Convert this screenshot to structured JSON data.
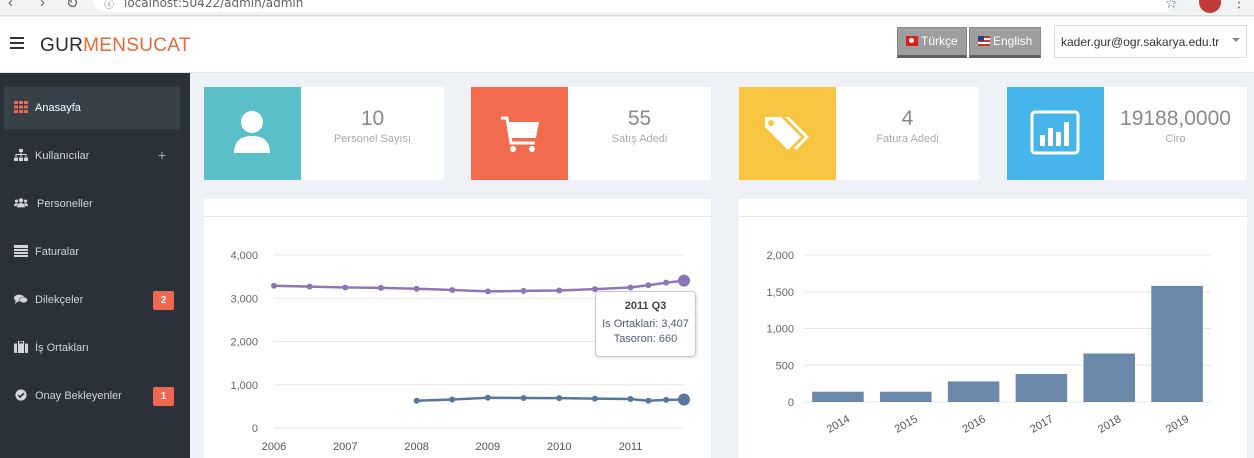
{
  "browser": {
    "url": "localhost:50422/admin/admin"
  },
  "header": {
    "brand_part1": "GUR",
    "brand_part2": "MENSUCAT",
    "lang_tr": "Türkçe",
    "lang_en": "English",
    "user_email": "kader.gur@ogr.sakarya.edu.tr"
  },
  "sidebar": {
    "items": [
      {
        "label": "Anasayfa",
        "icon": "grid-icon"
      },
      {
        "label": "Kullanıcılar",
        "icon": "sitemap-icon"
      },
      {
        "label": "Personeller",
        "icon": "users-icon"
      },
      {
        "label": "Faturalar",
        "icon": "table-icon"
      },
      {
        "label": "Dilekçeler",
        "icon": "comments-icon",
        "badge": "2"
      },
      {
        "label": "İş Ortakları",
        "icon": "briefcase-icon"
      },
      {
        "label": "Onay Bekleyenler",
        "icon": "check-circle-icon",
        "badge": "1"
      }
    ]
  },
  "cards": [
    {
      "value": "10",
      "caption": "Personel Sayısı",
      "color": "#5bbfc9",
      "icon": "user-icon"
    },
    {
      "value": "55",
      "caption": "Satış Adedi",
      "color": "#f26b4f",
      "icon": "cart-icon"
    },
    {
      "value": "4",
      "caption": "Fatura Adedi",
      "color": "#f8c540",
      "icon": "tags-icon"
    },
    {
      "value": "19188,0000",
      "caption": "Ciro",
      "color": "#45b5ea",
      "icon": "bar-chart-icon"
    }
  ],
  "tooltip": {
    "title": "2011 Q3",
    "line1": "Is Ortaklari: 3,407",
    "line2": "Tasoron: 660"
  },
  "chart_data": [
    {
      "type": "line",
      "x": [
        "2006",
        "2006.5",
        "2007",
        "2007.5",
        "2008",
        "2008.5",
        "2009",
        "2009.5",
        "2010",
        "2010.5",
        "2011",
        "2011.25",
        "2011.5",
        "2011.75"
      ],
      "xticks": [
        "2006",
        "2007",
        "2008",
        "2009",
        "2010",
        "2011"
      ],
      "yticks": [
        "0",
        "1,000",
        "2,000",
        "3,000",
        "4,000"
      ],
      "ylim": [
        0,
        4000
      ],
      "grid": true,
      "series": [
        {
          "name": "Is Ortaklari",
          "color": "#8b76b8",
          "values": [
            3290,
            3270,
            3250,
            3240,
            3220,
            3190,
            3160,
            3170,
            3180,
            3210,
            3250,
            3300,
            3360,
            3407
          ]
        },
        {
          "name": "Tasoron",
          "color": "#56789f",
          "values": [
            null,
            null,
            null,
            null,
            630,
            660,
            700,
            695,
            690,
            680,
            670,
            630,
            650,
            660
          ]
        }
      ]
    },
    {
      "type": "bar",
      "categories": [
        "2014",
        "2015",
        "2016",
        "2017",
        "2018",
        "2019"
      ],
      "values": [
        140,
        140,
        280,
        380,
        660,
        1580
      ],
      "yticks": [
        "0",
        "500",
        "1,000",
        "1,500",
        "2,000"
      ],
      "ylim": [
        0,
        2000
      ],
      "grid": true,
      "color": "#6b88aa"
    }
  ]
}
